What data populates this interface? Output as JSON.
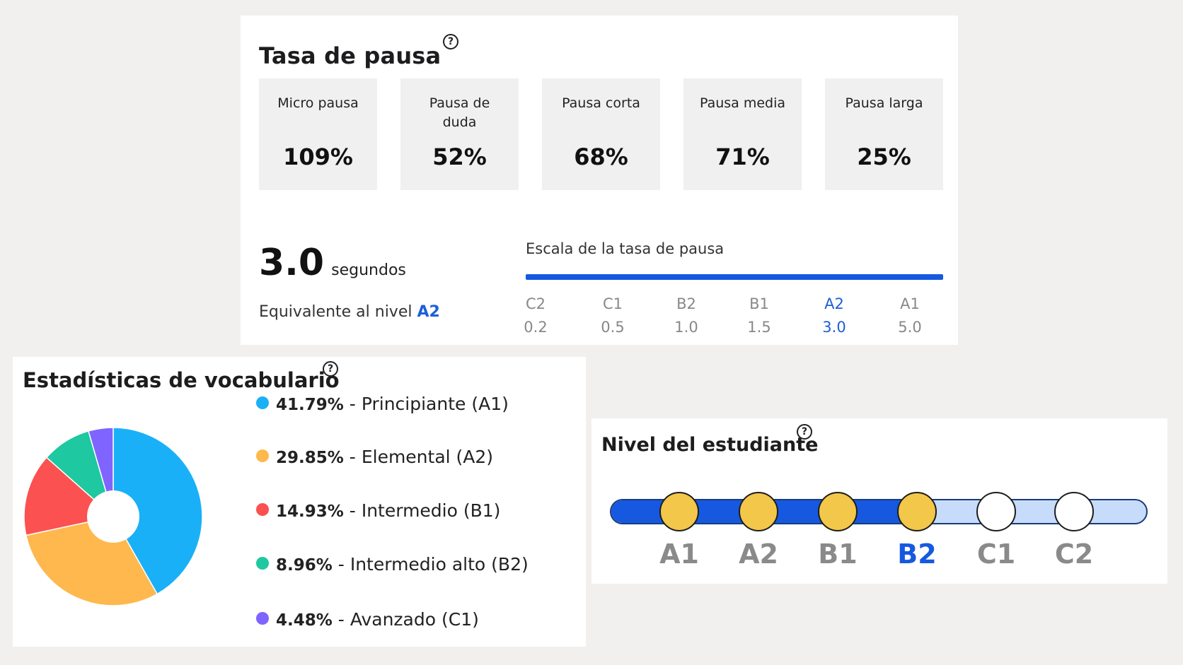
{
  "pause": {
    "title": "Tasa de pausa",
    "help_label": "?",
    "tiles": [
      {
        "label": "Micro pausa",
        "value": "109%"
      },
      {
        "label": "Pausa de duda",
        "value": "52%"
      },
      {
        "label": "Pausa corta",
        "value": "68%"
      },
      {
        "label": "Pausa media",
        "value": "71%"
      },
      {
        "label": "Pausa larga",
        "value": "25%"
      }
    ],
    "seconds_value": "3.0",
    "seconds_unit": "segundos",
    "equivalent_prefix": "Equivalente al nivel",
    "equivalent_level": "A2",
    "scale_title": "Escala de la tasa de pausa",
    "scale_colors": {
      "bar": "#1659e0",
      "active": "#1c5fd8"
    },
    "scale": [
      {
        "level": "C2",
        "value": "0.2",
        "active": false
      },
      {
        "level": "C1",
        "value": "0.5",
        "active": false
      },
      {
        "level": "B2",
        "value": "1.0",
        "active": false
      },
      {
        "level": "B1",
        "value": "1.5",
        "active": false
      },
      {
        "level": "A2",
        "value": "3.0",
        "active": true
      },
      {
        "level": "A1",
        "value": "5.0",
        "active": false
      }
    ]
  },
  "vocabulary": {
    "title": "Estadísticas de vocabulario",
    "help_label": "?",
    "separator": "-",
    "legend": [
      {
        "percent": "41.79%",
        "label": "Principiante (A1)",
        "color": "#1ab0f8"
      },
      {
        "percent": "29.85%",
        "label": "Elemental (A2)",
        "color": "#ffb84d"
      },
      {
        "percent": "14.93%",
        "label": "Intermedio (B1)",
        "color": "#fb5150"
      },
      {
        "percent": "8.96%",
        "label": "Intermedio alto (B2)",
        "color": "#1ec8a0"
      },
      {
        "percent": "4.48%",
        "label": "Avanzado (C1)",
        "color": "#8064ff"
      }
    ]
  },
  "chart_data": {
    "type": "pie",
    "categories": [
      "Principiante (A1)",
      "Elemental (A2)",
      "Intermedio (B1)",
      "Intermedio alto (B2)",
      "Avanzado (C1)"
    ],
    "values": [
      41.79,
      29.85,
      14.93,
      8.96,
      4.48
    ],
    "colors": [
      "#1ab0f8",
      "#ffb84d",
      "#fb5150",
      "#1ec8a0",
      "#8064ff"
    ],
    "title": "Estadísticas de vocabulario",
    "donut": true
  },
  "student_level": {
    "title": "Nivel del estudiante",
    "help_label": "?",
    "current": "B2",
    "progress_fraction": 0.6,
    "colors": {
      "done": "#f3c749",
      "track_fill": "#1659e0",
      "track_empty": "#c6dcfa",
      "current_label": "#1659e0"
    },
    "levels": [
      {
        "name": "A1",
        "reached": true
      },
      {
        "name": "A2",
        "reached": true
      },
      {
        "name": "B1",
        "reached": true
      },
      {
        "name": "B2",
        "reached": true
      },
      {
        "name": "C1",
        "reached": false
      },
      {
        "name": "C2",
        "reached": false
      }
    ]
  }
}
